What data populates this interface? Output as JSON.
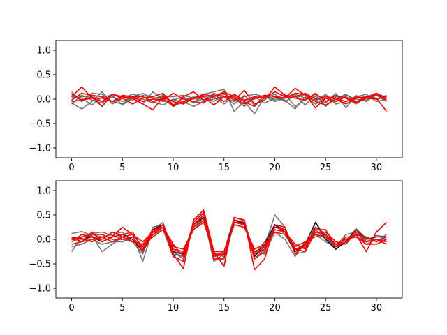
{
  "colors": {
    "gray_series": "#555555",
    "red_series": "#ff0000",
    "axis": "#000000",
    "background": "#ffffff"
  },
  "chart_data": [
    {
      "type": "line",
      "title": "",
      "xlabel": "",
      "ylabel": "",
      "xlim": [
        -1.55,
        32.55
      ],
      "ylim": [
        -1.2,
        1.2
      ],
      "grid": false,
      "x_ticks": [
        0,
        5,
        10,
        15,
        20,
        25,
        30
      ],
      "x_tick_labels": [
        "0",
        "5",
        "10",
        "15",
        "20",
        "25",
        "30"
      ],
      "y_ticks": [
        -1.0,
        -0.5,
        0.0,
        0.5,
        1.0
      ],
      "y_tick_labels": [
        "−1.0",
        "−0.5",
        "0.0",
        "0.5",
        "1.0"
      ],
      "x": [
        0,
        1,
        2,
        3,
        4,
        5,
        6,
        7,
        8,
        9,
        10,
        11,
        12,
        13,
        14,
        15,
        16,
        17,
        18,
        19,
        20,
        21,
        22,
        23,
        24,
        25,
        26,
        27,
        28,
        29,
        30,
        31
      ],
      "series": [
        {
          "color": "gray",
          "values": [
            0.15,
            -0.05,
            0.12,
            0.1,
            -0.05,
            -0.1,
            0.05,
            0.12,
            0.02,
            -0.05,
            -0.02,
            0.05,
            -0.08,
            0.1,
            0.15,
            0.2,
            -0.25,
            -0.05,
            -0.3,
            0.05,
            0.02,
            0.1,
            -0.15,
            0.0,
            0.05,
            -0.08,
            0.12,
            -0.18,
            0.08,
            -0.05,
            0.1,
            0.05
          ]
        },
        {
          "color": "gray",
          "values": [
            -0.08,
            -0.2,
            -0.05,
            0.15,
            -0.1,
            0.02,
            0.1,
            0.05,
            -0.05,
            -0.12,
            0.0,
            -0.08,
            0.05,
            -0.02,
            0.12,
            0.05,
            -0.1,
            0.08,
            -0.12,
            0.02,
            0.1,
            -0.05,
            0.08,
            -0.12,
            0.1,
            -0.15,
            0.05,
            0.02,
            -0.1,
            0.05,
            0.12,
            0.02
          ]
        },
        {
          "color": "gray",
          "values": [
            0.05,
            0.02,
            -0.12,
            0.05,
            0.08,
            -0.12,
            0.02,
            -0.1,
            0.15,
            -0.02,
            -0.12,
            0.02,
            0.0,
            0.08,
            -0.05,
            0.1,
            0.02,
            -0.15,
            0.05,
            -0.08,
            0.02,
            -0.02,
            -0.2,
            0.05,
            -0.1,
            0.02,
            -0.05,
            0.08,
            0.0,
            -0.02,
            0.08,
            -0.05
          ]
        },
        {
          "color": "gray",
          "values": [
            -0.1,
            0.08,
            -0.02,
            -0.08,
            0.05,
            -0.05,
            0.05,
            0.0,
            -0.08,
            0.1,
            -0.15,
            -0.05,
            -0.15,
            -0.05,
            0.05,
            -0.1,
            0.08,
            -0.02,
            0.0,
            0.08,
            -0.02,
            0.05,
            0.02,
            0.1,
            -0.05,
            0.1,
            -0.1,
            -0.05,
            0.05,
            0.1,
            -0.05,
            0.0
          ]
        },
        {
          "color": "gray",
          "values": [
            0.02,
            0.05,
            0.08,
            -0.05,
            0.1,
            0.05,
            -0.02,
            0.08,
            0.02,
            0.05,
            0.05,
            0.08,
            0.02,
            -0.05,
            0.0,
            0.05,
            -0.05,
            0.05,
            0.1,
            0.05,
            -0.05,
            0.02,
            0.1,
            0.02,
            -0.02,
            0.05,
            0.0,
            0.1,
            -0.05,
            0.05,
            0.0,
            0.08
          ]
        },
        {
          "color": "red",
          "values": [
            0.05,
            0.25,
            0.02,
            -0.05,
            0.1,
            0.02,
            0.05,
            0.05,
            -0.05,
            0.02,
            -0.15,
            0.05,
            0.15,
            -0.02,
            0.05,
            0.12,
            -0.02,
            0.18,
            -0.1,
            -0.02,
            0.25,
            0.08,
            0.05,
            0.12,
            0.0,
            0.05,
            0.02,
            -0.05,
            0.05,
            0.02,
            0.12,
            0.02
          ]
        },
        {
          "color": "red",
          "values": [
            -0.05,
            -0.02,
            0.05,
            -0.15,
            0.1,
            0.05,
            0.02,
            -0.1,
            -0.22,
            0.05,
            -0.05,
            -0.1,
            0.02,
            0.05,
            -0.12,
            0.05,
            0.02,
            -0.1,
            0.02,
            0.08,
            0.05,
            0.02,
            0.22,
            0.08,
            -0.05,
            -0.12,
            0.0,
            -0.1,
            0.02,
            0.05,
            0.02,
            -0.25
          ]
        },
        {
          "color": "red",
          "values": [
            0.1,
            -0.02,
            0.02,
            0.02,
            -0.05,
            0.02,
            -0.1,
            0.02,
            0.05,
            0.12,
            -0.12,
            -0.05,
            0.02,
            0.1,
            0.05,
            0.15,
            0.05,
            -0.05,
            -0.15,
            0.08,
            0.05,
            0.02,
            0.12,
            0.1,
            -0.18,
            0.02,
            -0.05,
            0.05,
            -0.08,
            0.02,
            0.1,
            -0.02
          ]
        },
        {
          "color": "red",
          "values": [
            -0.02,
            0.12,
            0.08,
            0.05,
            -0.05,
            0.08,
            0.05,
            -0.05,
            0.0,
            -0.02,
            0.12,
            0.0,
            -0.05,
            -0.08,
            0.1,
            -0.05,
            0.1,
            -0.02,
            0.05,
            0.02,
            0.15,
            0.05,
            0.02,
            -0.02,
            0.12,
            -0.05,
            0.08,
            0.02,
            -0.05,
            0.02,
            0.0,
            0.05
          ]
        }
      ]
    },
    {
      "type": "line",
      "title": "",
      "xlabel": "",
      "ylabel": "",
      "xlim": [
        -1.55,
        32.55
      ],
      "ylim": [
        -1.2,
        1.2
      ],
      "grid": false,
      "x_ticks": [
        0,
        5,
        10,
        15,
        20,
        25,
        30
      ],
      "x_tick_labels": [
        "0",
        "5",
        "10",
        "15",
        "20",
        "25",
        "30"
      ],
      "y_ticks": [
        -1.0,
        -0.5,
        0.0,
        0.5,
        1.0
      ],
      "y_tick_labels": [
        "−1.0",
        "−0.5",
        "0.0",
        "0.5",
        "1.0"
      ],
      "x": [
        0,
        1,
        2,
        3,
        4,
        5,
        6,
        7,
        8,
        9,
        10,
        11,
        12,
        13,
        14,
        15,
        16,
        17,
        18,
        19,
        20,
        21,
        22,
        23,
        24,
        25,
        26,
        27,
        28,
        29,
        30,
        31
      ],
      "series": [
        {
          "color": "gray",
          "values": [
            0.12,
            0.16,
            0.08,
            -0.25,
            -0.1,
            0.05,
            0.1,
            -0.45,
            0.2,
            0.35,
            -0.3,
            -0.35,
            0.35,
            0.55,
            -0.4,
            -0.38,
            0.4,
            0.3,
            -0.35,
            -0.15,
            0.5,
            0.25,
            -0.3,
            -0.25,
            0.35,
            0.05,
            -0.2,
            -0.05,
            0.22,
            0.02,
            0.0,
            -0.05
          ]
        },
        {
          "color": "gray",
          "values": [
            -0.25,
            0.05,
            0.12,
            0.15,
            0.08,
            0.0,
            -0.05,
            -0.1,
            0.15,
            0.3,
            -0.25,
            -0.4,
            0.25,
            0.45,
            -0.45,
            -0.3,
            0.35,
            0.35,
            -0.4,
            -0.2,
            0.3,
            0.2,
            -0.2,
            -0.1,
            0.1,
            -0.05,
            -0.15,
            0.1,
            0.15,
            -0.05,
            0.08,
            0.05
          ]
        },
        {
          "color": "gray",
          "values": [
            0.0,
            -0.05,
            0.1,
            0.05,
            0.1,
            0.15,
            -0.05,
            -0.3,
            0.25,
            0.3,
            -0.2,
            -0.3,
            0.3,
            0.5,
            -0.35,
            -0.25,
            0.45,
            0.38,
            -0.3,
            -0.05,
            0.3,
            0.1,
            -0.25,
            -0.15,
            0.2,
            0.0,
            -0.1,
            -0.1,
            0.15,
            -0.1,
            0.0,
            0.0
          ]
        },
        {
          "color": "gray",
          "values": [
            -0.15,
            -0.1,
            0.0,
            -0.1,
            -0.05,
            -0.05,
            0.05,
            -0.2,
            0.1,
            0.2,
            -0.35,
            -0.25,
            0.2,
            0.4,
            -0.3,
            -0.35,
            0.3,
            0.25,
            -0.25,
            -0.3,
            0.15,
            0.0,
            -0.35,
            -0.05,
            0.05,
            0.1,
            -0.2,
            0.0,
            0.1,
            0.05,
            -0.05,
            0.1
          ]
        },
        {
          "color": "black",
          "values": [
            0.05,
            0.0,
            0.05,
            -0.05,
            0.05,
            0.1,
            0.0,
            -0.25,
            0.2,
            0.3,
            -0.25,
            -0.3,
            0.3,
            0.45,
            -0.35,
            -0.3,
            0.4,
            0.32,
            -0.35,
            -0.1,
            0.3,
            0.15,
            -0.25,
            -0.1,
            0.35,
            0.0,
            -0.2,
            -0.05,
            0.2,
            0.0,
            0.05,
            0.05
          ]
        },
        {
          "color": "red",
          "values": [
            0.05,
            -0.05,
            0.15,
            -0.05,
            0.05,
            0.25,
            0.1,
            -0.05,
            0.15,
            0.3,
            -0.3,
            -0.6,
            0.4,
            0.6,
            -0.25,
            -0.55,
            0.45,
            0.4,
            -0.62,
            -0.4,
            0.3,
            0.25,
            -0.3,
            -0.1,
            0.2,
            0.2,
            -0.15,
            -0.05,
            0.1,
            -0.25,
            0.15,
            0.35
          ]
        },
        {
          "color": "red",
          "values": [
            -0.05,
            0.1,
            0.05,
            0.0,
            0.15,
            0.05,
            0.1,
            -0.15,
            0.2,
            0.25,
            -0.35,
            -0.45,
            0.35,
            0.55,
            -0.4,
            -0.4,
            0.4,
            0.35,
            -0.4,
            -0.25,
            0.25,
            0.2,
            -0.2,
            -0.25,
            0.15,
            0.15,
            -0.05,
            -0.1,
            0.2,
            -0.05,
            0.0,
            -0.05
          ]
        },
        {
          "color": "red",
          "values": [
            0.0,
            0.05,
            0.1,
            0.1,
            0.0,
            0.0,
            0.05,
            -0.25,
            0.1,
            0.25,
            -0.1,
            -0.35,
            0.3,
            0.5,
            -0.35,
            -0.3,
            0.35,
            0.3,
            -0.25,
            -0.15,
            0.2,
            0.15,
            -0.1,
            -0.2,
            0.25,
            0.1,
            -0.15,
            0.05,
            0.05,
            -0.1,
            -0.1,
            0.0
          ]
        },
        {
          "color": "red",
          "values": [
            -0.1,
            -0.05,
            0.0,
            0.05,
            -0.05,
            0.05,
            -0.05,
            -0.1,
            0.05,
            0.2,
            -0.15,
            -0.2,
            0.2,
            0.35,
            -0.25,
            -0.25,
            0.3,
            0.25,
            -0.2,
            -0.1,
            0.15,
            0.1,
            -0.15,
            -0.05,
            0.1,
            0.05,
            -0.1,
            0.0,
            0.1,
            0.05,
            -0.05,
            0.05
          ]
        },
        {
          "color": "red",
          "values": [
            0.02,
            0.02,
            -0.05,
            0.05,
            0.05,
            0.1,
            0.15,
            -0.2,
            0.15,
            0.25,
            -0.2,
            -0.25,
            0.25,
            0.4,
            -0.3,
            -0.3,
            0.35,
            0.3,
            -0.3,
            -0.2,
            0.25,
            0.2,
            -0.2,
            -0.15,
            0.15,
            0.1,
            -0.1,
            0.0,
            0.05,
            -0.05,
            0.0,
            -0.1
          ]
        }
      ]
    }
  ]
}
